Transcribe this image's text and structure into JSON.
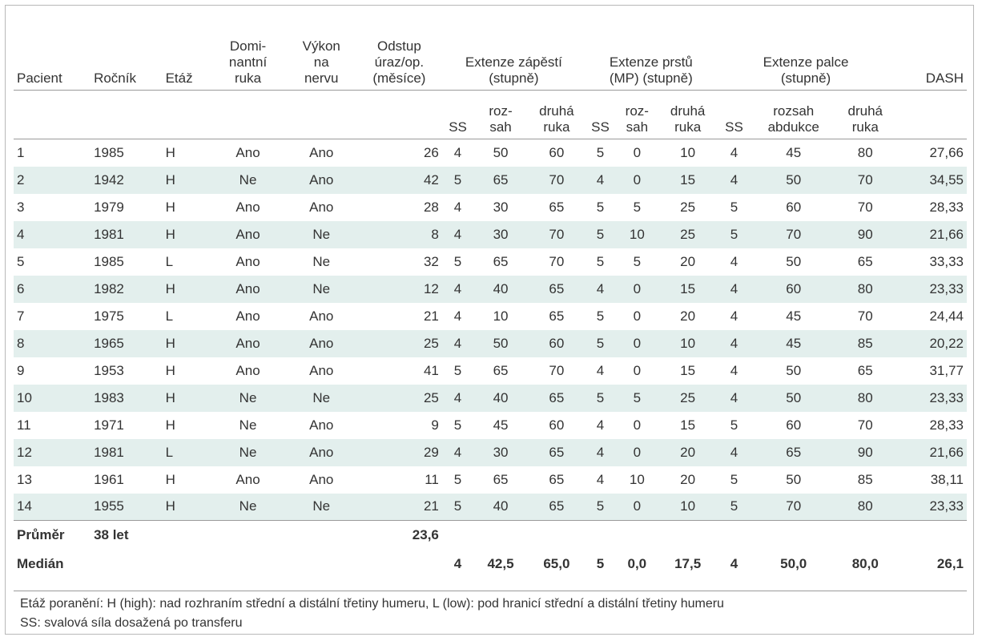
{
  "header_top": {
    "pacient": "Pacient",
    "rocnik": "Ročník",
    "etaz": "Etáž",
    "dominant": "Domi-\nnantní\nruka",
    "vykon": "Výkon\nna\nnervu",
    "odstup": "Odstup\núraz/op.\n(měsíce)",
    "zapesti": "Extenze zápěstí\n(stupně)",
    "prstu": "Extenze prstů\n(MP) (stupně)",
    "palce": "Extenze palce\n(stupně)",
    "dash": "DASH"
  },
  "header_sub": {
    "ss": "SS",
    "rozsah": "roz-\nsah",
    "druha": "druhá\nruka",
    "rozsah_abdukce": "rozsah\nabdukce"
  },
  "rows": [
    [
      "1",
      "1985",
      "H",
      "Ano",
      "Ano",
      "26",
      "4",
      "50",
      "60",
      "5",
      "0",
      "10",
      "4",
      "45",
      "80",
      "27,66"
    ],
    [
      "2",
      "1942",
      "H",
      "Ne",
      "Ano",
      "42",
      "5",
      "65",
      "70",
      "4",
      "0",
      "15",
      "4",
      "50",
      "70",
      "34,55"
    ],
    [
      "3",
      "1979",
      "H",
      "Ano",
      "Ano",
      "28",
      "4",
      "30",
      "65",
      "5",
      "5",
      "25",
      "5",
      "60",
      "70",
      "28,33"
    ],
    [
      "4",
      "1981",
      "H",
      "Ano",
      "Ne",
      "8",
      "4",
      "30",
      "70",
      "5",
      "10",
      "25",
      "5",
      "70",
      "90",
      "21,66"
    ],
    [
      "5",
      "1985",
      "L",
      "Ano",
      "Ne",
      "32",
      "5",
      "65",
      "70",
      "5",
      "5",
      "20",
      "4",
      "50",
      "65",
      "33,33"
    ],
    [
      "6",
      "1982",
      "H",
      "Ano",
      "Ne",
      "12",
      "4",
      "40",
      "65",
      "4",
      "0",
      "15",
      "4",
      "60",
      "80",
      "23,33"
    ],
    [
      "7",
      "1975",
      "L",
      "Ano",
      "Ano",
      "21",
      "4",
      "10",
      "65",
      "5",
      "0",
      "20",
      "4",
      "45",
      "70",
      "24,44"
    ],
    [
      "8",
      "1965",
      "H",
      "Ano",
      "Ano",
      "25",
      "4",
      "50",
      "60",
      "5",
      "0",
      "10",
      "4",
      "45",
      "85",
      "20,22"
    ],
    [
      "9",
      "1953",
      "H",
      "Ano",
      "Ano",
      "41",
      "5",
      "65",
      "70",
      "4",
      "0",
      "15",
      "4",
      "50",
      "65",
      "31,77"
    ],
    [
      "10",
      "1983",
      "H",
      "Ne",
      "Ne",
      "25",
      "4",
      "40",
      "65",
      "5",
      "5",
      "25",
      "4",
      "50",
      "80",
      "23,33"
    ],
    [
      "11",
      "1971",
      "H",
      "Ne",
      "Ano",
      "9",
      "5",
      "45",
      "60",
      "4",
      "0",
      "15",
      "5",
      "60",
      "70",
      "28,33"
    ],
    [
      "12",
      "1981",
      "L",
      "Ne",
      "Ano",
      "29",
      "4",
      "30",
      "65",
      "4",
      "0",
      "20",
      "4",
      "65",
      "90",
      "21,66"
    ],
    [
      "13",
      "1961",
      "H",
      "Ano",
      "Ano",
      "11",
      "5",
      "65",
      "65",
      "4",
      "10",
      "20",
      "5",
      "50",
      "85",
      "38,11"
    ],
    [
      "14",
      "1955",
      "H",
      "Ne",
      "Ne",
      "21",
      "5",
      "40",
      "65",
      "5",
      "0",
      "10",
      "5",
      "70",
      "80",
      "23,33"
    ]
  ],
  "prumer": {
    "label": "Průměr",
    "rocnik": "38 let",
    "odstup": "23,6"
  },
  "median": {
    "label": "Medián",
    "values": [
      "4",
      "42,5",
      "65,0",
      "5",
      "0,0",
      "17,5",
      "4",
      "50,0",
      "80,0",
      "26,1"
    ]
  },
  "notes": [
    "Etáž poranění: H (high): nad rozhraním střední a distální třetiny humeru, L (low): pod hranicí střední a distální třetiny humeru",
    "SS: svalová síla dosažená po transferu"
  ],
  "colors": {
    "stripe": "#e3efed",
    "text": "#333333",
    "rule": "#9a9a9a"
  }
}
